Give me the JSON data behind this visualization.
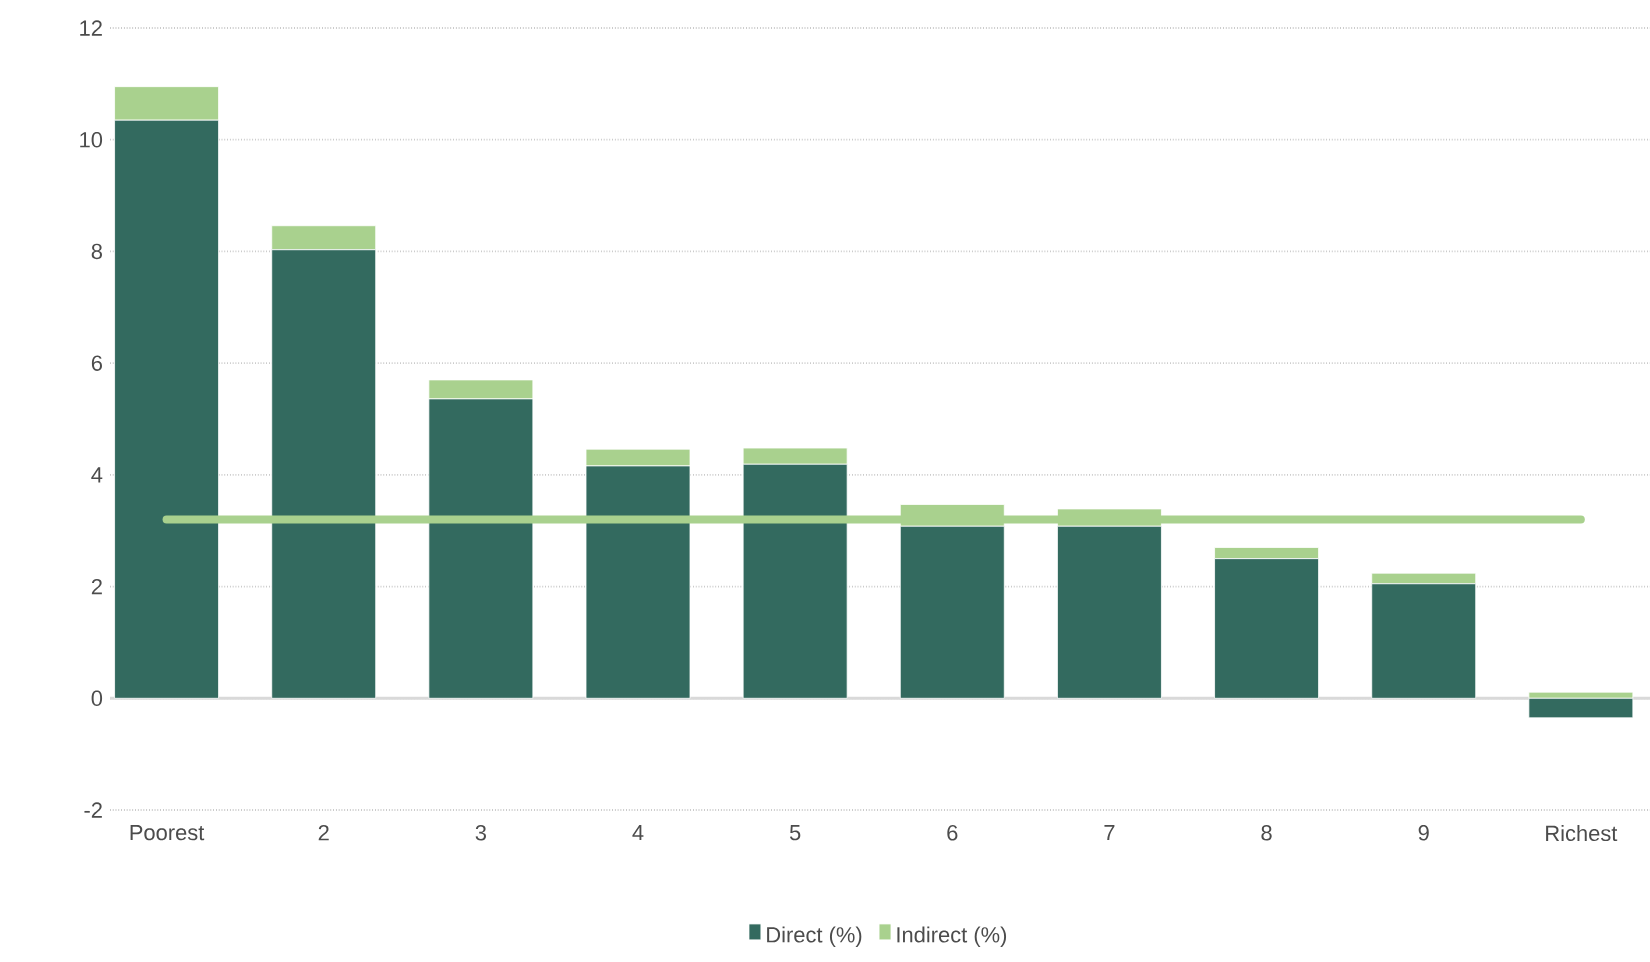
{
  "chart_data": {
    "type": "bar",
    "stacked": true,
    "categories": [
      "Poorest",
      "2",
      "3",
      "4",
      "5",
      "6",
      "7",
      "8",
      "9",
      "Richest"
    ],
    "series": [
      {
        "name": "Direct (%)",
        "color": "#336a5f",
        "values": [
          10.35,
          8.03,
          5.36,
          4.16,
          4.19,
          3.08,
          3.08,
          2.5,
          2.05,
          -0.35
        ]
      },
      {
        "name": "Indirect (%)",
        "color": "#a9d18e",
        "values": [
          0.6,
          0.43,
          0.34,
          0.3,
          0.29,
          0.39,
          0.31,
          0.2,
          0.19,
          0.11
        ]
      },
      {
        "type": "line",
        "color": "#a9d18e",
        "values": [
          3.2,
          3.2,
          3.2,
          3.2,
          3.2,
          3.2,
          3.2,
          3.2,
          3.2,
          3.2
        ]
      }
    ],
    "ylim": [
      -2,
      12
    ],
    "yticks": [
      -2,
      0,
      2,
      4,
      6,
      8,
      10,
      12
    ],
    "grid": "y",
    "legend": "bottom"
  }
}
